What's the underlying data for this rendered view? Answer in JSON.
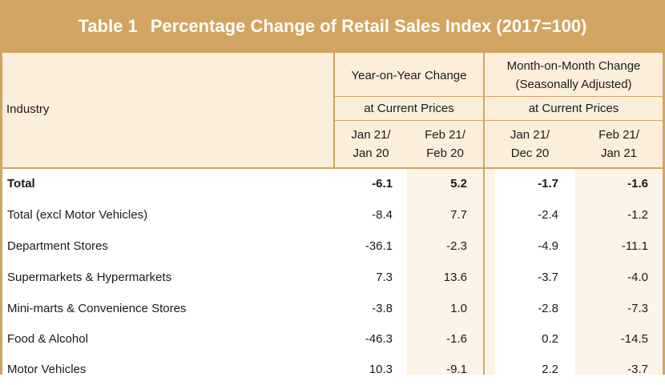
{
  "title": {
    "number": "Table 1",
    "text": "Percentage Change of Retail Sales Index (2017=100)"
  },
  "header": {
    "industry": "Industry",
    "yoy_group": "Year-on-Year Change",
    "mom_group_line1": "Month-on-Month Change",
    "mom_group_line2": "(Seasonally Adjusted)",
    "yoy_prices": "at Current Prices",
    "mom_prices": "at Current Prices",
    "col1_l1": "Jan 21/",
    "col1_l2": "Jan 20",
    "col2_l1": "Feb 21/",
    "col2_l2": "Feb 20",
    "col3_l1": "Jan 21/",
    "col3_l2": "Dec 20",
    "col4_l1": "Feb 21/",
    "col4_l2": "Jan 21"
  },
  "rows": [
    {
      "name": "Total",
      "values": [
        "-6.1",
        "5.2",
        "-1.7",
        "-1.6"
      ]
    },
    {
      "name": "Total (excl Motor Vehicles)",
      "values": [
        "-8.4",
        "7.7",
        "-2.4",
        "-1.2"
      ]
    },
    {
      "name": "Department Stores",
      "values": [
        "-36.1",
        "-2.3",
        "-4.9",
        "-11.1"
      ]
    },
    {
      "name": "Supermarkets & Hypermarkets",
      "values": [
        "7.3",
        "13.6",
        "-3.7",
        "-4.0"
      ]
    },
    {
      "name": "Mini-marts & Convenience Stores",
      "values": [
        "-3.8",
        "1.0",
        "-2.8",
        "-7.3"
      ]
    },
    {
      "name": "Food & Alcohol",
      "values": [
        "-46.3",
        "-1.6",
        "0.2",
        "-14.5"
      ]
    },
    {
      "name": "Motor Vehicles",
      "values": [
        "10.3",
        "-9.1",
        "2.2",
        "-3.7"
      ]
    }
  ]
}
